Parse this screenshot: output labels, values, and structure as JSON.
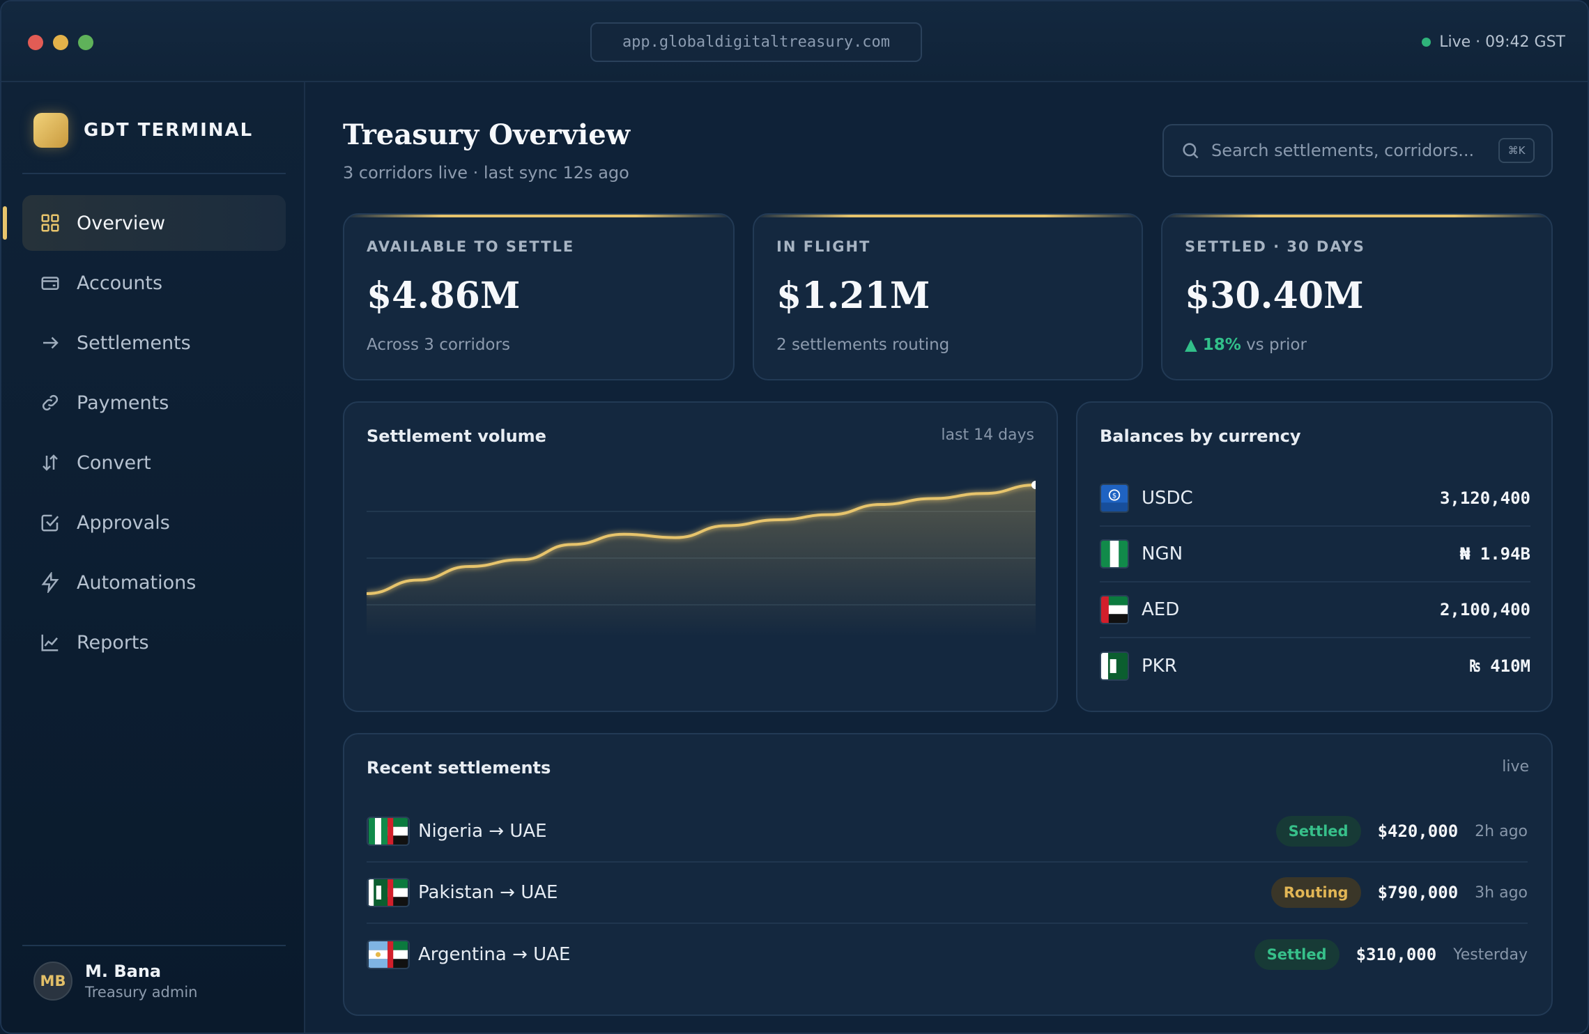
{
  "window": {
    "url": "app.globaldigitaltreasury.com",
    "live_status": "Live · 09:42 GST"
  },
  "sidebar": {
    "brand": "GDT TERMINAL",
    "items": [
      {
        "label": "Overview",
        "icon": "grid-icon",
        "active": true
      },
      {
        "label": "Accounts",
        "icon": "wallet-icon"
      },
      {
        "label": "Settlements",
        "icon": "arrow-right-icon"
      },
      {
        "label": "Payments",
        "icon": "link-icon"
      },
      {
        "label": "Convert",
        "icon": "swap-icon"
      },
      {
        "label": "Approvals",
        "icon": "check-square-icon"
      },
      {
        "label": "Automations",
        "icon": "lightning-icon"
      },
      {
        "label": "Reports",
        "icon": "line-chart-icon"
      }
    ],
    "user": {
      "initials": "MB",
      "name": "M. Bana",
      "role": "Treasury admin"
    }
  },
  "header": {
    "title": "Treasury Overview",
    "subtitle": "3 corridors live · last sync 12s ago",
    "search_placeholder": "Search settlements, corridors...",
    "search_shortcut": "⌘K"
  },
  "stats": [
    {
      "label": "AVAILABLE TO SETTLE",
      "value": "$4.86M",
      "note": "Across 3 corridors"
    },
    {
      "label": "IN FLIGHT",
      "value": "$1.21M",
      "note": "2 settlements routing"
    },
    {
      "label": "SETTLED · 30 DAYS",
      "value": "$30.40M",
      "change": "▲ 18%",
      "note": "vs prior"
    }
  ],
  "volume_chart": {
    "title": "Settlement volume",
    "period": "last 14 days"
  },
  "chart_data": {
    "type": "area",
    "title": "Settlement volume",
    "x": [
      1,
      2,
      3,
      4,
      5,
      6,
      7,
      8,
      9,
      10,
      11,
      12,
      13,
      14
    ],
    "values": [
      0.0,
      0.16,
      0.32,
      0.4,
      0.58,
      0.7,
      0.66,
      0.8,
      0.87,
      0.93,
      1.05,
      1.12,
      1.18,
      1.28
    ],
    "xlabel": "",
    "ylabel": "",
    "grid": true,
    "legend": "none",
    "color": "#e7c46c"
  },
  "balances": {
    "title": "Balances by currency",
    "items": [
      {
        "code": "USDC",
        "amount": "3,120,400",
        "flag": "usdc-icon"
      },
      {
        "code": "NGN",
        "amount": "₦ 1.94B",
        "flag": "nigeria-flag-icon"
      },
      {
        "code": "AED",
        "amount": "2,100,400",
        "flag": "uae-flag-icon"
      },
      {
        "code": "PKR",
        "amount": "₨ 410M",
        "flag": "pakistan-flag-icon"
      }
    ]
  },
  "settlements": {
    "title": "Recent settlements",
    "meta": "live",
    "items": [
      {
        "corridor": "Nigeria → UAE",
        "status": "Settled",
        "amount": "$420,000",
        "time": "2h ago",
        "from_flag": "nigeria-flag-icon"
      },
      {
        "corridor": "Pakistan → UAE",
        "status": "Routing",
        "amount": "$790,000",
        "time": "3h ago",
        "from_flag": "pakistan-flag-icon"
      },
      {
        "corridor": "Argentina → UAE",
        "status": "Settled",
        "amount": "$310,000",
        "time": "Yesterday",
        "from_flag": "argentina-flag-icon"
      }
    ]
  }
}
